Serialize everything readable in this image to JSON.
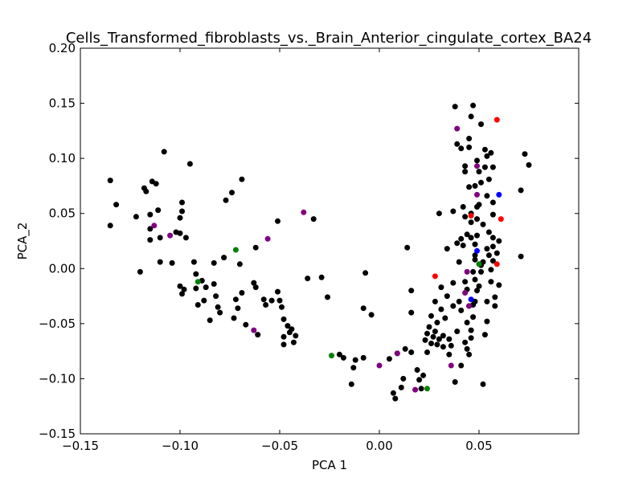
{
  "chart_data": {
    "type": "scatter",
    "title": "Cells_Transformed_fibroblasts_vs._Brain_Anterior_cingulate_cortex_BA24",
    "xlabel": "PCA 1",
    "ylabel": "PCA_2",
    "xlim": [
      -0.15,
      0.1
    ],
    "ylim": [
      -0.15,
      0.2
    ],
    "grid": false,
    "x_ticks": [
      -0.15,
      -0.1,
      -0.05,
      0.0,
      0.05
    ],
    "x_tick_labels": [
      "−0.15",
      "−0.10",
      "−0.05",
      "0.00",
      "0.05"
    ],
    "y_ticks": [
      -0.15,
      -0.1,
      -0.05,
      0.0,
      0.05,
      0.1,
      0.15,
      0.2
    ],
    "y_tick_labels": [
      "−0.15",
      "−0.10",
      "−0.05",
      "0.00",
      "0.05",
      "0.10",
      "0.15",
      "0.20"
    ],
    "series": [
      {
        "color": "#000000",
        "points": [
          [
            -0.135,
            0.08
          ],
          [
            -0.132,
            0.058
          ],
          [
            -0.135,
            0.039
          ],
          [
            -0.122,
            0.047
          ],
          [
            -0.12,
            -0.003
          ],
          [
            -0.118,
            0.073
          ],
          [
            -0.117,
            0.07
          ],
          [
            -0.114,
            0.079
          ],
          [
            -0.112,
            0.077
          ],
          [
            -0.115,
            0.049
          ],
          [
            -0.115,
            0.036
          ],
          [
            -0.115,
            0.026
          ],
          [
            -0.111,
            0.053
          ],
          [
            -0.11,
            0.028
          ],
          [
            -0.11,
            0.006
          ],
          [
            -0.108,
            0.106
          ],
          [
            -0.104,
            0.005
          ],
          [
            -0.102,
            0.033
          ],
          [
            -0.1,
            0.046
          ],
          [
            -0.1,
            0.032
          ],
          [
            -0.1,
            -0.016
          ],
          [
            -0.099,
            -0.023
          ],
          [
            -0.098,
            -0.019
          ],
          [
            -0.099,
            0.06
          ],
          [
            -0.099,
            0.052
          ],
          [
            -0.097,
            0.028
          ],
          [
            -0.095,
            0.095
          ],
          [
            -0.093,
            0.006
          ],
          [
            -0.092,
            -0.005
          ],
          [
            -0.092,
            -0.018
          ],
          [
            -0.091,
            -0.033
          ],
          [
            -0.089,
            -0.011
          ],
          [
            -0.088,
            -0.029
          ],
          [
            -0.087,
            -0.017
          ],
          [
            -0.085,
            -0.047
          ],
          [
            -0.083,
            0.005
          ],
          [
            -0.083,
            -0.014
          ],
          [
            -0.082,
            -0.025
          ],
          [
            -0.081,
            -0.035
          ],
          [
            -0.08,
            -0.04
          ],
          [
            -0.078,
            0.01
          ],
          [
            -0.077,
            0.062
          ],
          [
            -0.074,
            0.069
          ],
          [
            -0.073,
            -0.045
          ],
          [
            -0.072,
            -0.028
          ],
          [
            -0.071,
            -0.036
          ],
          [
            -0.07,
            0.004
          ],
          [
            -0.069,
            -0.022
          ],
          [
            -0.069,
            0.081
          ],
          [
            -0.067,
            -0.051
          ],
          [
            -0.063,
            -0.013
          ],
          [
            -0.062,
            0.019
          ],
          [
            -0.062,
            -0.017
          ],
          [
            -0.061,
            -0.06
          ],
          [
            -0.058,
            -0.028
          ],
          [
            -0.057,
            -0.033
          ],
          [
            -0.054,
            -0.029
          ],
          [
            -0.051,
            0.043
          ],
          [
            -0.051,
            -0.021
          ],
          [
            -0.05,
            -0.029
          ],
          [
            -0.049,
            -0.035
          ],
          [
            -0.048,
            -0.046
          ],
          [
            -0.048,
            -0.062
          ],
          [
            -0.048,
            -0.069
          ],
          [
            -0.046,
            -0.052
          ],
          [
            -0.045,
            -0.058
          ],
          [
            -0.044,
            -0.055
          ],
          [
            -0.043,
            -0.067
          ],
          [
            -0.042,
            -0.061
          ],
          [
            -0.036,
            -0.009
          ],
          [
            -0.033,
            0.045
          ],
          [
            -0.029,
            -0.008
          ],
          [
            -0.026,
            -0.026
          ],
          [
            -0.02,
            -0.078
          ],
          [
            -0.018,
            -0.081
          ],
          [
            -0.014,
            -0.105
          ],
          [
            -0.013,
            -0.09
          ],
          [
            -0.012,
            -0.083
          ],
          [
            -0.008,
            -0.036
          ],
          [
            -0.008,
            -0.081
          ],
          [
            -0.007,
            -0.004
          ],
          [
            -0.004,
            -0.042
          ],
          [
            0.005,
            -0.082
          ],
          [
            0.007,
            -0.113
          ],
          [
            0.008,
            -0.118
          ],
          [
            0.009,
            -0.077
          ],
          [
            0.011,
            -0.108
          ],
          [
            0.012,
            -0.1
          ],
          [
            0.013,
            -0.073
          ],
          [
            0.014,
            0.019
          ],
          [
            0.016,
            -0.02
          ],
          [
            0.016,
            -0.04
          ],
          [
            0.016,
            -0.076
          ],
          [
            0.019,
            -0.092
          ],
          [
            0.02,
            -0.101
          ],
          [
            0.021,
            -0.109
          ],
          [
            0.022,
            -0.097
          ],
          [
            0.023,
            -0.065
          ],
          [
            0.024,
            -0.076
          ],
          [
            0.024,
            -0.059
          ],
          [
            0.025,
            -0.053
          ],
          [
            0.026,
            -0.043
          ],
          [
            0.026,
            -0.068
          ],
          [
            0.027,
            -0.062
          ],
          [
            0.028,
            -0.057
          ],
          [
            0.028,
            -0.03
          ],
          [
            0.029,
            -0.069
          ],
          [
            0.029,
            -0.049
          ],
          [
            0.03,
            -0.064
          ],
          [
            0.03,
            0.05
          ],
          [
            0.031,
            -0.037
          ],
          [
            0.031,
            -0.017
          ],
          [
            0.032,
            -0.061
          ],
          [
            0.032,
            -0.071
          ],
          [
            0.033,
            -0.045
          ],
          [
            0.034,
            0.018
          ],
          [
            0.034,
            -0.025
          ],
          [
            0.035,
            -0.064
          ],
          [
            0.035,
            -0.078
          ],
          [
            0.036,
            -0.07
          ],
          [
            0.037,
            -0.013
          ],
          [
            0.037,
            0.052
          ],
          [
            0.037,
            -0.034
          ],
          [
            0.038,
            -0.103
          ],
          [
            0.038,
            0.147
          ],
          [
            0.039,
            0.023
          ],
          [
            0.039,
            0.113
          ],
          [
            0.039,
            -0.057
          ],
          [
            0.04,
            0.006
          ],
          [
            0.04,
            -0.03
          ],
          [
            0.041,
            -0.038
          ],
          [
            0.041,
            -0.088
          ],
          [
            0.041,
            0.109
          ],
          [
            0.042,
            0.056
          ],
          [
            0.042,
            0.021
          ],
          [
            0.043,
            -0.012
          ],
          [
            0.043,
            -0.067
          ],
          [
            0.043,
            0.093
          ],
          [
            0.043,
            0.088
          ],
          [
            0.044,
            -0.049
          ],
          [
            0.044,
            0.031
          ],
          [
            0.044,
            -0.019
          ],
          [
            0.044,
            -0.073
          ],
          [
            0.045,
            -0.078
          ],
          [
            0.045,
            0.118
          ],
          [
            0.045,
            0.11
          ],
          [
            0.045,
            0.074
          ],
          [
            0.045,
            -0.034
          ],
          [
            0.046,
            -0.056
          ],
          [
            0.046,
            0.138
          ],
          [
            0.046,
            0.05
          ],
          [
            0.046,
            0.042
          ],
          [
            0.046,
            0.028
          ],
          [
            0.046,
            -0.063
          ],
          [
            0.047,
            -0.033
          ],
          [
            0.047,
            0.148
          ],
          [
            0.047,
            -0.003
          ],
          [
            0.047,
            -0.044
          ],
          [
            0.048,
            0.022
          ],
          [
            0.048,
            0.075
          ],
          [
            0.048,
            0.012
          ],
          [
            0.048,
            0.008
          ],
          [
            0.048,
            -0.01
          ],
          [
            0.048,
            -0.03
          ],
          [
            0.049,
            0.098
          ],
          [
            0.049,
            0.056
          ],
          [
            0.049,
            0.045
          ],
          [
            0.049,
            0.03
          ],
          [
            0.049,
            -0.02
          ],
          [
            0.05,
            0.088
          ],
          [
            0.05,
            0.058
          ],
          [
            0.05,
            -0.016
          ],
          [
            0.051,
            0.131
          ],
          [
            0.051,
            0.078
          ],
          [
            0.051,
            0.003
          ],
          [
            0.051,
            -0.003
          ],
          [
            0.052,
            0.04
          ],
          [
            0.052,
            -0.105
          ],
          [
            0.052,
            0.006
          ],
          [
            0.053,
            0.108
          ],
          [
            0.053,
            0.092
          ],
          [
            0.053,
            -0.06
          ],
          [
            0.054,
            0.102
          ],
          [
            0.054,
            0.066
          ],
          [
            0.054,
            0.018
          ],
          [
            0.054,
            -0.048
          ],
          [
            0.054,
            -0.03
          ],
          [
            0.055,
            0.081
          ],
          [
            0.055,
            0.033
          ],
          [
            0.055,
            0.012
          ],
          [
            0.056,
            -0.012
          ],
          [
            0.056,
            -0.001
          ],
          [
            0.056,
            0.105
          ],
          [
            0.057,
            0.06
          ],
          [
            0.057,
            0.092
          ],
          [
            0.057,
            0.049
          ],
          [
            0.057,
            0.028
          ],
          [
            0.057,
            0.02
          ],
          [
            0.057,
            0.007
          ],
          [
            0.058,
            -0.026
          ],
          [
            0.058,
            -0.034
          ],
          [
            0.059,
            0.014
          ],
          [
            0.06,
            0.025
          ],
          [
            0.06,
            -0.015
          ],
          [
            0.071,
            0.071
          ],
          [
            0.071,
            0.011
          ],
          [
            0.073,
            0.104
          ],
          [
            0.075,
            0.094
          ],
          [
            0.043,
            0.047
          ],
          [
            0.041,
            0.027
          ]
        ]
      },
      {
        "color": "#800080",
        "points": [
          [
            -0.113,
            0.039
          ],
          [
            -0.105,
            0.03
          ],
          [
            -0.063,
            -0.056
          ],
          [
            -0.056,
            0.027
          ],
          [
            -0.038,
            0.051
          ],
          [
            0.0,
            -0.088
          ],
          [
            0.009,
            -0.077
          ],
          [
            0.018,
            -0.11
          ],
          [
            0.036,
            -0.088
          ],
          [
            0.039,
            0.127
          ],
          [
            0.043,
            -0.022
          ],
          [
            0.049,
            0.093
          ],
          [
            0.049,
            0.067
          ],
          [
            0.045,
            -0.034
          ],
          [
            0.044,
            -0.003
          ]
        ]
      },
      {
        "color": "#008000",
        "points": [
          [
            -0.091,
            -0.012
          ],
          [
            -0.072,
            0.017
          ],
          [
            -0.024,
            -0.079
          ],
          [
            0.024,
            -0.109
          ],
          [
            0.05,
            0.004
          ]
        ]
      },
      {
        "color": "#ff0000",
        "points": [
          [
            0.059,
            0.135
          ],
          [
            0.061,
            0.045
          ],
          [
            0.059,
            0.004
          ],
          [
            0.028,
            -0.007
          ],
          [
            0.046,
            0.048
          ]
        ]
      },
      {
        "color": "#0000ff",
        "points": [
          [
            0.06,
            0.067
          ],
          [
            0.049,
            0.016
          ],
          [
            0.046,
            -0.028
          ]
        ]
      }
    ]
  }
}
